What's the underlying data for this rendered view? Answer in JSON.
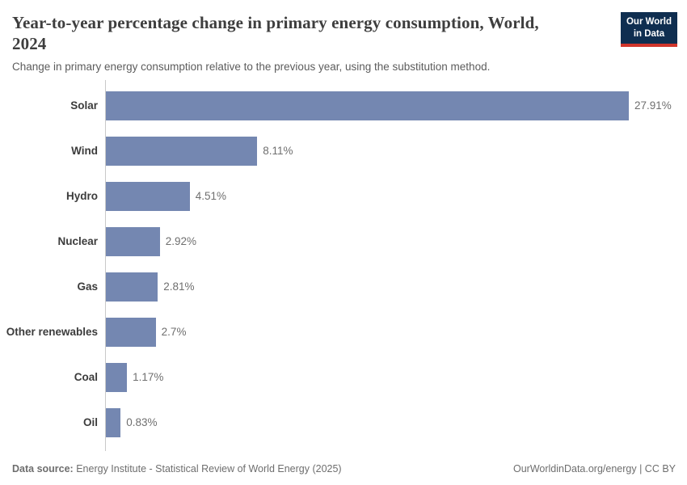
{
  "header": {
    "title": "Year-to-year percentage change in primary energy consumption, World, 2024",
    "subtitle": "Change in primary energy consumption relative to the previous year, using the substitution method.",
    "logo": {
      "line1": "Our World",
      "line2": "in Data",
      "bg_color": "#0f2e50",
      "accent_color": "#d0352b"
    }
  },
  "chart_data": {
    "type": "bar",
    "orientation": "horizontal",
    "title": "Year-to-year percentage change in primary energy consumption, World, 2024",
    "categories": [
      "Solar",
      "Wind",
      "Hydro",
      "Nuclear",
      "Gas",
      "Other renewables",
      "Coal",
      "Oil"
    ],
    "values": [
      27.91,
      8.11,
      4.51,
      2.92,
      2.81,
      2.7,
      1.17,
      0.83
    ],
    "value_labels": [
      "27.91%",
      "8.11%",
      "4.51%",
      "2.92%",
      "2.81%",
      "2.7%",
      "1.17%",
      "0.83%"
    ],
    "xlabel": "",
    "ylabel": "",
    "xlim": [
      0,
      27.91
    ],
    "grid": false,
    "legend": "none",
    "bar_color": "#7487b1"
  },
  "footer": {
    "datasource_label": "Data source:",
    "datasource_text": " Energy Institute - Statistical Review of World Energy (2025)",
    "link_text": "OurWorldinData.org/energy | CC BY"
  }
}
